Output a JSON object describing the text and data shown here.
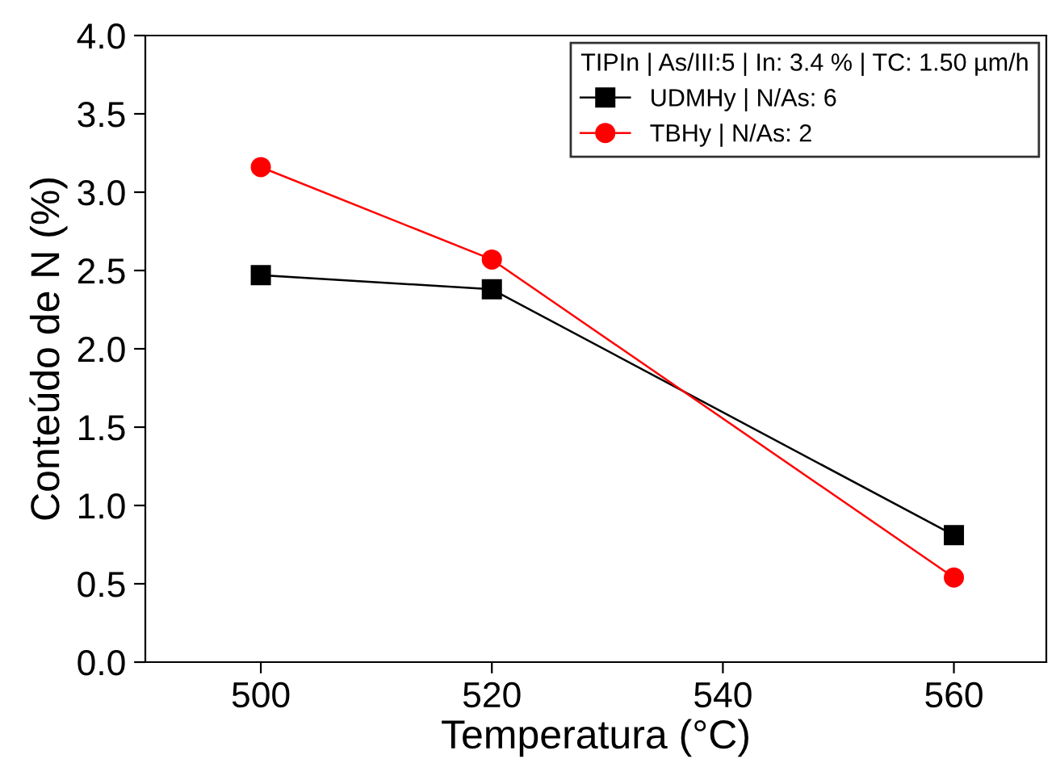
{
  "chart_data": {
    "type": "line",
    "xlabel": "Temperatura (°C)",
    "ylabel": "Conteúdo de N (%)",
    "legend_title": "TIPIn | As/III:5 | In: 3.4 % | TC: 1.50 µm/h",
    "x": [
      500,
      520,
      560
    ],
    "series": [
      {
        "name": "UDMHy | N/As: 6",
        "color": "#000000",
        "marker": "square",
        "values": [
          2.47,
          2.38,
          0.81
        ]
      },
      {
        "name": "TBHy | N/As: 2",
        "color": "#ff0000",
        "marker": "circle",
        "values": [
          3.16,
          2.57,
          0.54
        ]
      }
    ],
    "xlim": [
      490,
      568
    ],
    "xticks": [
      500,
      520,
      540,
      560
    ],
    "ylim": [
      0,
      4
    ],
    "yticks": [
      {
        "value": 0,
        "label": "0.0"
      },
      {
        "value": 0.5,
        "label": "0.5"
      },
      {
        "value": 1,
        "label": "1.0"
      },
      {
        "value": 1.5,
        "label": "1.5"
      },
      {
        "value": 2,
        "label": "2.0"
      },
      {
        "value": 2.5,
        "label": "2.5"
      },
      {
        "value": 3,
        "label": "3.0"
      },
      {
        "value": 3.5,
        "label": "3.5"
      },
      {
        "value": 4,
        "label": "4.0"
      }
    ],
    "grid": false,
    "legend": "top right",
    "line_style": "solid"
  }
}
